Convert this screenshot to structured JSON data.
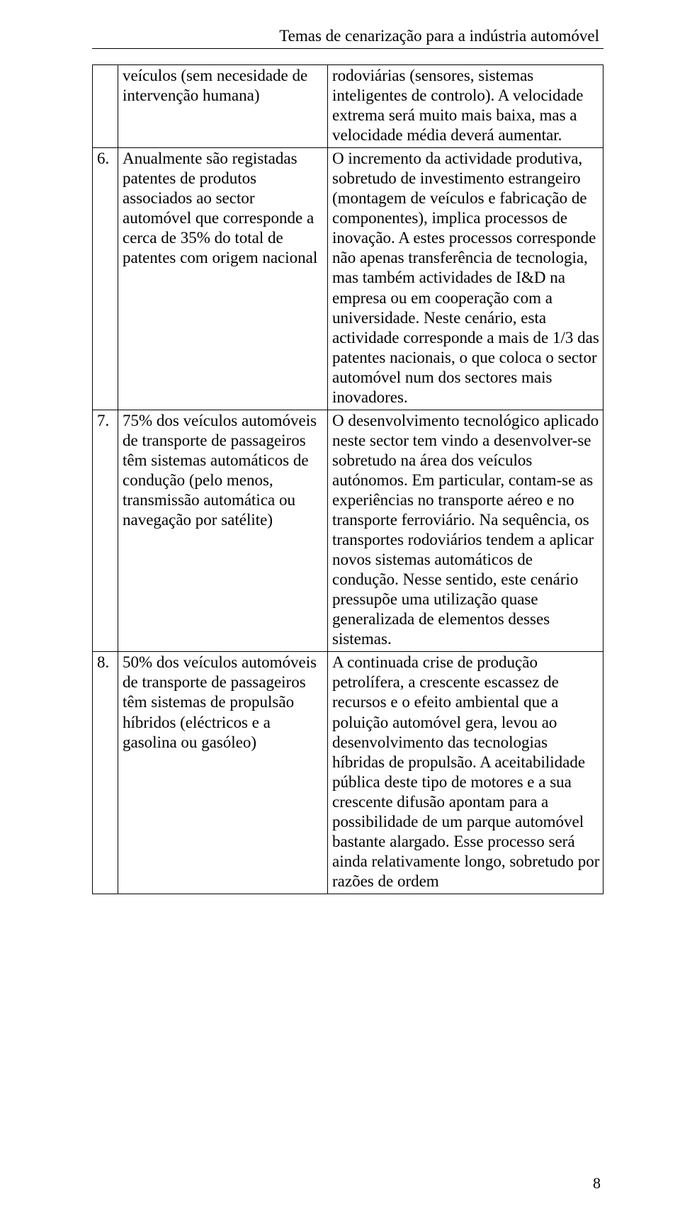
{
  "header": {
    "title": "Temas de cenarização para a indústria automóvel"
  },
  "rows": [
    {
      "num": "",
      "left": "veículos (sem necesidade de intervenção humana)",
      "right": "rodoviárias (sensores, sistemas inteligentes de controlo). A velocidade extrema será muito mais baixa, mas a velocidade média deverá aumentar."
    },
    {
      "num": "6.",
      "left": "Anualmente são registadas patentes de produtos associados ao sector automóvel que corresponde a cerca de 35% do total de patentes com origem nacional",
      "right": "O incremento da actividade produtiva, sobretudo de investimento estrangeiro (montagem de veículos e fabricação de componentes), implica processos de inovação. A estes processos corresponde não apenas transferência de tecnologia, mas também actividades de I&D na empresa ou em cooperação com a universidade. Neste cenário, esta actividade corresponde a mais de 1/3 das patentes nacionais, o que coloca o sector automóvel num dos sectores mais inovadores."
    },
    {
      "num": "7.",
      "left": "75% dos veículos automóveis de transporte de passageiros têm sistemas automáticos de condução (pelo menos, transmissão automática ou navegação por satélite)",
      "right": "O desenvolvimento tecnológico aplicado neste sector tem vindo a desenvolver-se sobretudo na área dos veículos autónomos. Em particular, contam-se as experiências no transporte aéreo e no transporte ferroviário. Na sequência, os transportes rodoviários tendem a aplicar novos sistemas automáticos de condução. Nesse sentido, este cenário pressupõe uma utilização quase generalizada de elementos desses sistemas."
    },
    {
      "num": "8.",
      "left": "50% dos veículos automóveis de transporte de passageiros têm sistemas de propulsão híbridos (eléctricos e a gasolina ou gasóleo)",
      "right": "A continuada crise de produção petrolífera, a crescente escassez de recursos e o efeito ambiental que a poluição automóvel gera, levou ao desenvolvimento das tecnologias híbridas de propulsão. A aceitabilidade pública deste tipo de motores e a sua crescente difusão apontam para a possibilidade de um parque automóvel bastante alargado. Esse processo será ainda relativamente longo, sobretudo por razões de ordem"
    }
  ],
  "page_number": "8"
}
